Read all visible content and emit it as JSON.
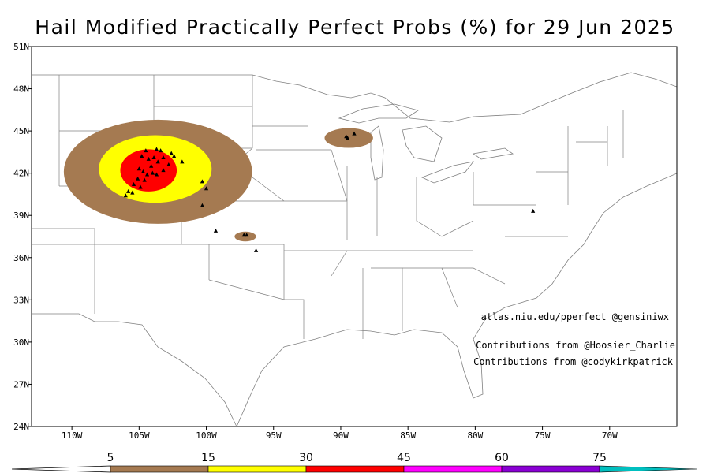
{
  "title": "Hail Modified Practically Perfect Probs (%) for 29 Jun 2025",
  "lat_labels": [
    "51N",
    "48N",
    "45N",
    "42N",
    "39N",
    "36N",
    "33N",
    "30N",
    "27N",
    "24N"
  ],
  "lon_labels": [
    "110W",
    "105W",
    "100W",
    "95W",
    "90W",
    "85W",
    "80W",
    "75W",
    "70W"
  ],
  "credits": {
    "site": "atlas.niu.edu/pperfect @gensiniwx",
    "line1": "Contributions from @Hoosier_Charlie",
    "line2": "Contributions from @codykirkpatrick"
  },
  "colorbar": {
    "labels": [
      "5",
      "15",
      "30",
      "45",
      "60",
      "75"
    ],
    "colors": [
      "#a57a51",
      "#ffff00",
      "#ff0000",
      "#ff00ff",
      "#8a00d4",
      "#00bfbf"
    ]
  },
  "map": {
    "extent": {
      "lon": [
        -113,
        -65
      ],
      "lat": [
        24,
        51
      ]
    },
    "prob_colors": {
      "p5": "#a57a51",
      "p15": "#ffff00",
      "p30": "#ff0000"
    },
    "reports": [
      [
        -104.5,
        43.6
      ],
      [
        -103.7,
        43.7
      ],
      [
        -103.4,
        43.6
      ],
      [
        -104.8,
        43.2
      ],
      [
        -104.3,
        43.0
      ],
      [
        -103.9,
        43.1
      ],
      [
        -103.2,
        43.1
      ],
      [
        -102.6,
        43.4
      ],
      [
        -102.4,
        43.2
      ],
      [
        -101.8,
        42.8
      ],
      [
        -103.6,
        42.8
      ],
      [
        -104.1,
        42.5
      ],
      [
        -105.0,
        42.3
      ],
      [
        -104.7,
        42.1
      ],
      [
        -104.4,
        41.9
      ],
      [
        -104.0,
        42.0
      ],
      [
        -103.7,
        41.9
      ],
      [
        -105.1,
        41.6
      ],
      [
        -105.4,
        41.2
      ],
      [
        -104.9,
        41.0
      ],
      [
        -105.8,
        40.7
      ],
      [
        -106.0,
        40.4
      ],
      [
        -105.5,
        40.6
      ],
      [
        -104.6,
        41.5
      ],
      [
        -103.2,
        42.2
      ],
      [
        -102.8,
        42.6
      ],
      [
        -100.3,
        41.4
      ],
      [
        -100.0,
        40.9
      ],
      [
        -100.3,
        39.7
      ],
      [
        -99.3,
        37.9
      ],
      [
        -97.0,
        37.6
      ],
      [
        -97.2,
        37.6
      ],
      [
        -96.3,
        36.5
      ],
      [
        -89.6,
        44.6
      ],
      [
        -89.5,
        44.5
      ],
      [
        -89.0,
        44.8
      ],
      [
        -75.7,
        39.3
      ]
    ],
    "areas": [
      {
        "level": "p5",
        "center": [
          -103.6,
          42.1
        ],
        "rx": 7.0,
        "ry": 3.7
      },
      {
        "level": "p15",
        "center": [
          -103.8,
          42.3
        ],
        "rx": 4.2,
        "ry": 2.4
      },
      {
        "level": "p30",
        "center": [
          -104.3,
          42.2
        ],
        "rx": 2.1,
        "ry": 1.5
      },
      {
        "level": "p5",
        "center": [
          -89.4,
          44.5
        ],
        "rx": 1.8,
        "ry": 0.7
      },
      {
        "level": "p5",
        "center": [
          -97.1,
          37.5
        ],
        "rx": 0.8,
        "ry": 0.35
      }
    ]
  }
}
